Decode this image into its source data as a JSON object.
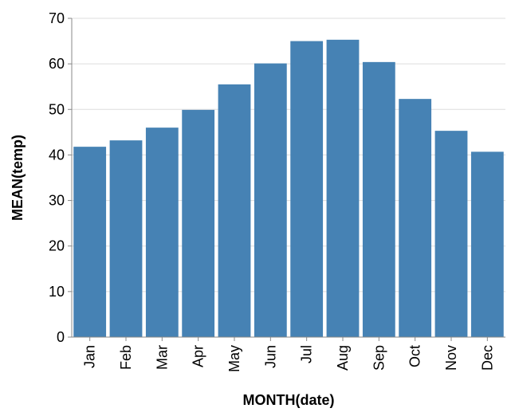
{
  "chart_data": {
    "type": "bar",
    "categories": [
      "Jan",
      "Feb",
      "Mar",
      "Apr",
      "May",
      "Jun",
      "Jul",
      "Aug",
      "Sep",
      "Oct",
      "Nov",
      "Dec"
    ],
    "values": [
      41.8,
      43.2,
      46.0,
      49.9,
      55.5,
      60.1,
      65.0,
      65.3,
      60.4,
      52.3,
      45.3,
      40.7
    ],
    "xlabel": "MONTH(date)",
    "ylabel": "MEAN(temp)",
    "ylim": [
      0,
      70
    ],
    "yticks": [
      0,
      10,
      20,
      30,
      40,
      50,
      60,
      70
    ],
    "grid": true,
    "colors": {
      "bar": "#4682b4"
    }
  }
}
